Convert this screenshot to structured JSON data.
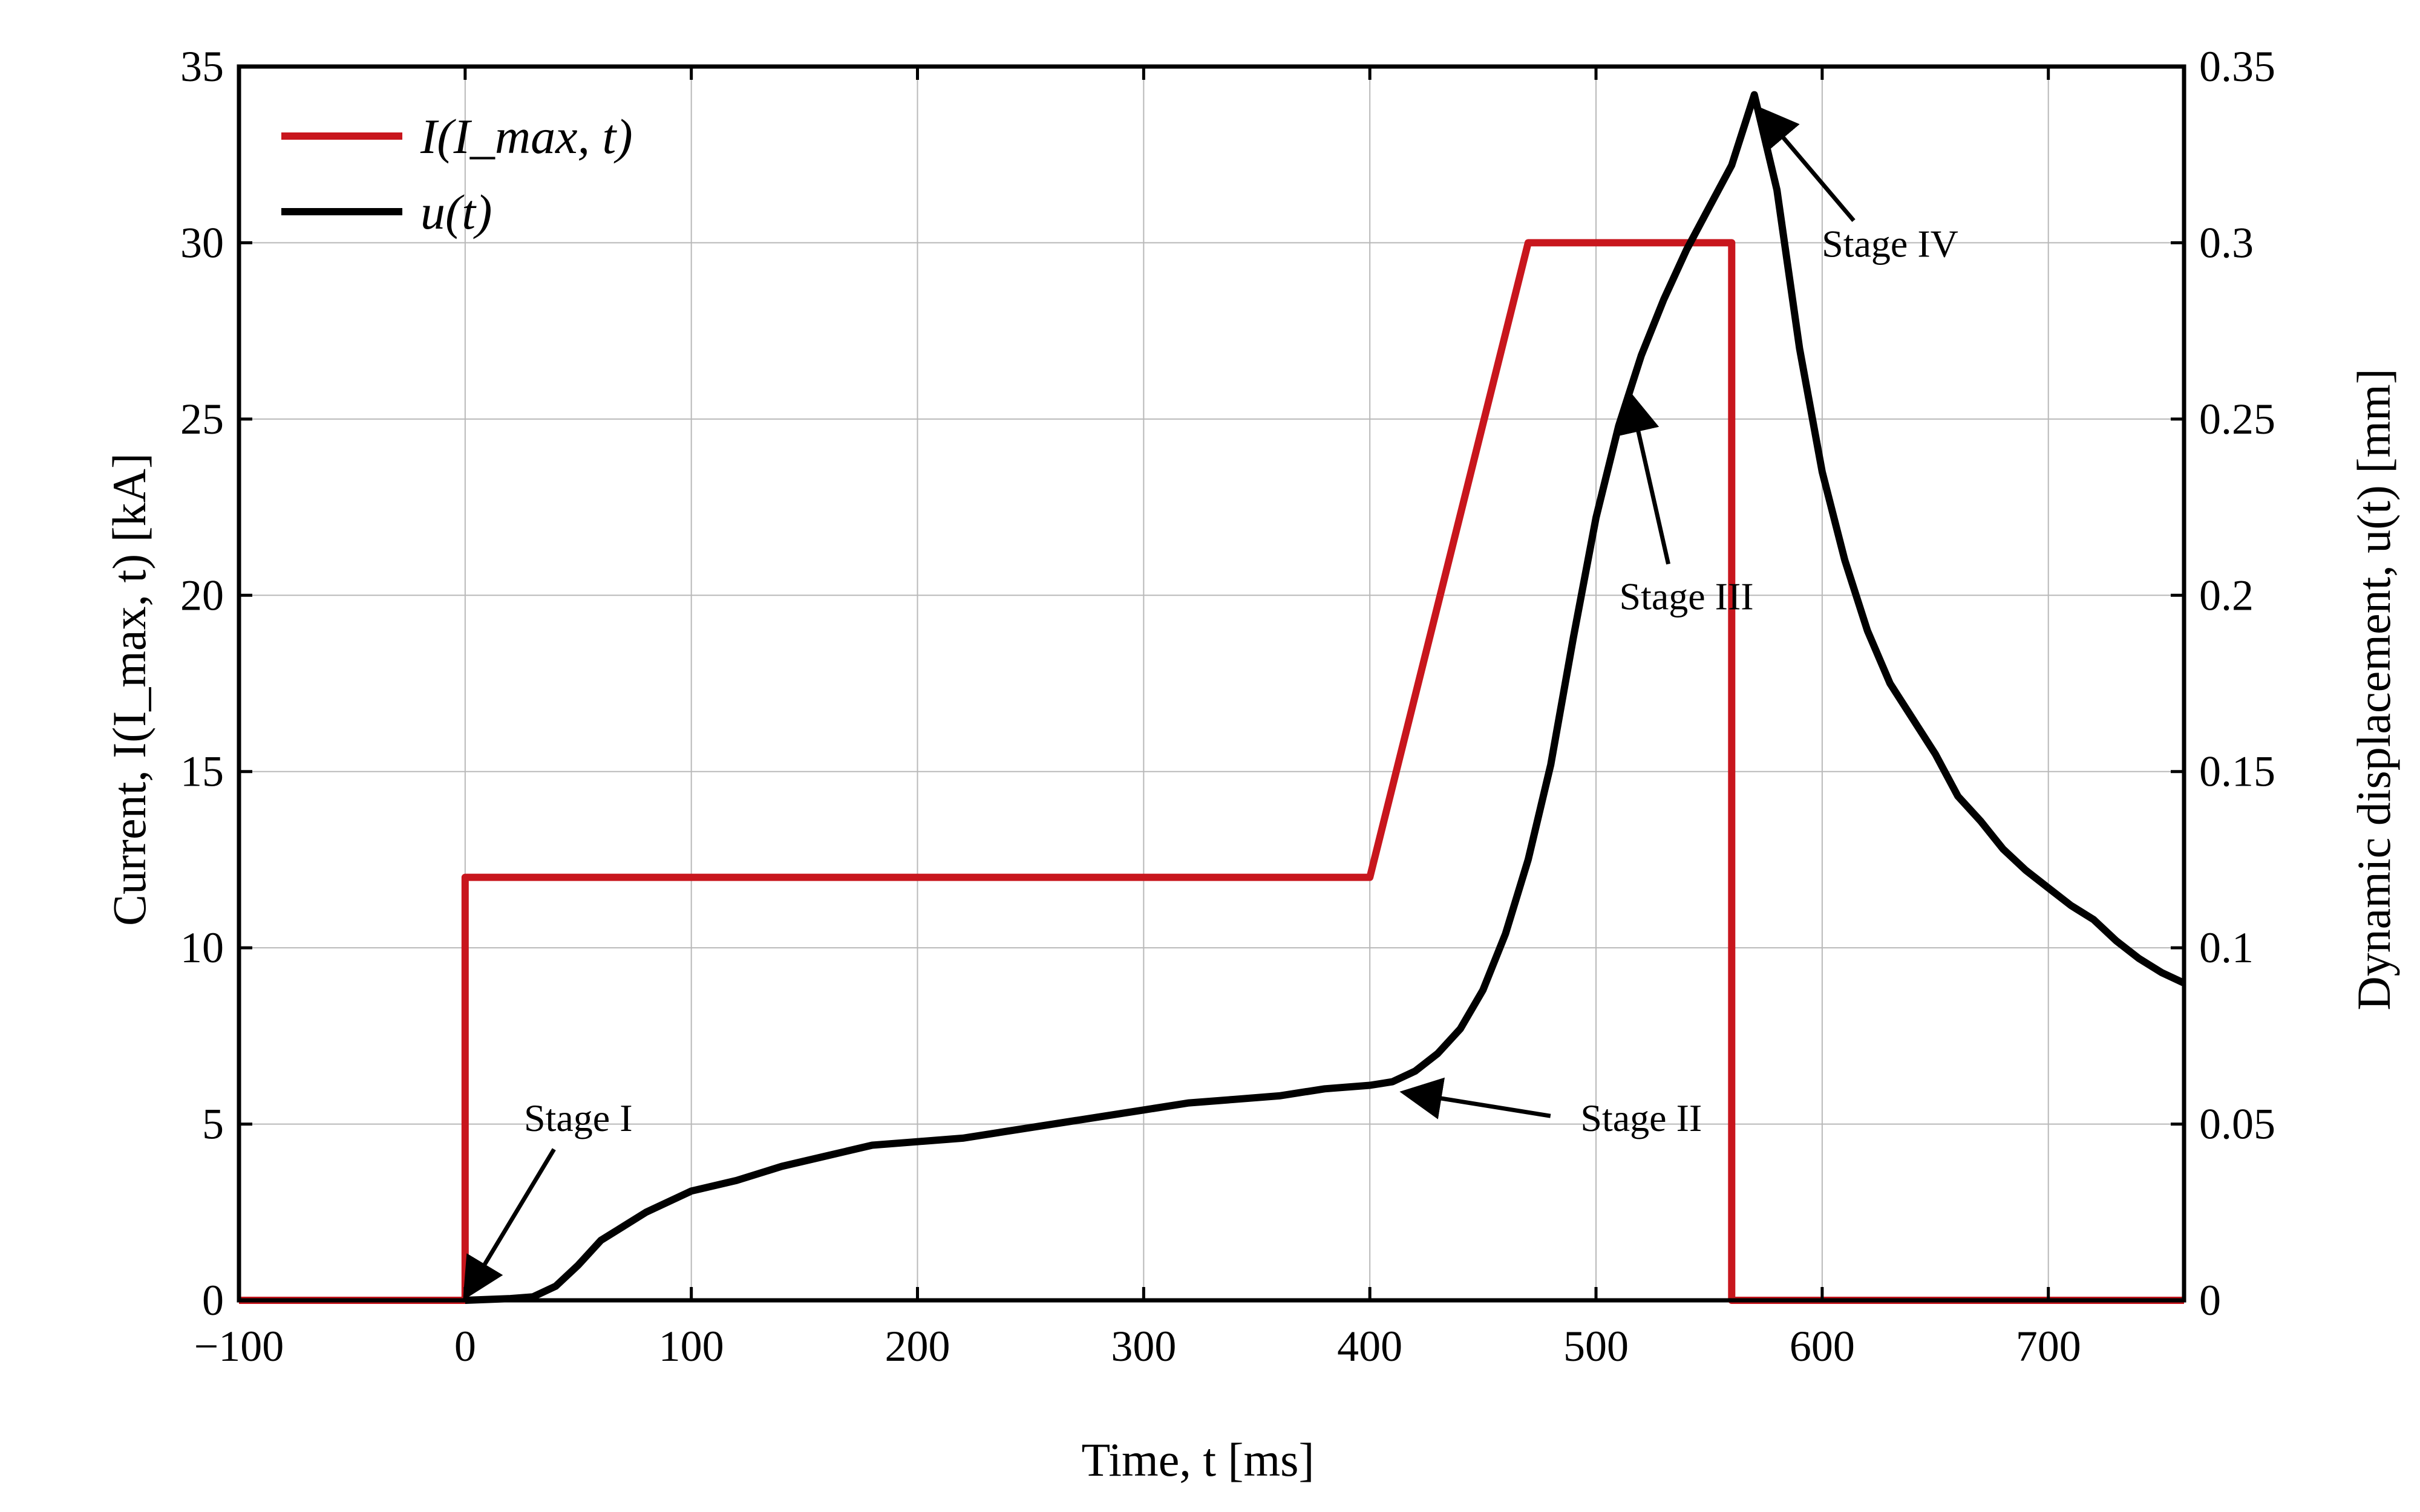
{
  "chart_data": {
    "type": "line",
    "xlabel": "Time, t [ms]",
    "ylabel_left": "Current,  I(I_max, t) [kA]",
    "ylabel_right": "Dynamic displacement,  u(t) [mm]",
    "xlim": [
      -100,
      760
    ],
    "ylim_left": [
      0,
      35
    ],
    "ylim_right": [
      0,
      0.35
    ],
    "grid": true,
    "legend_position": "top-left",
    "x_ticks": [
      {
        "value": -100,
        "label": "−100"
      },
      {
        "value": 0,
        "label": "0"
      },
      {
        "value": 100,
        "label": "100"
      },
      {
        "value": 200,
        "label": "200"
      },
      {
        "value": 300,
        "label": "300"
      },
      {
        "value": 400,
        "label": "400"
      },
      {
        "value": 500,
        "label": "500"
      },
      {
        "value": 600,
        "label": "600"
      },
      {
        "value": 700,
        "label": "700"
      }
    ],
    "y_left_ticks": [
      {
        "value": 0,
        "label": "0"
      },
      {
        "value": 5,
        "label": "5"
      },
      {
        "value": 10,
        "label": "10"
      },
      {
        "value": 15,
        "label": "15"
      },
      {
        "value": 20,
        "label": "20"
      },
      {
        "value": 25,
        "label": "25"
      },
      {
        "value": 30,
        "label": "30"
      },
      {
        "value": 35,
        "label": "35"
      }
    ],
    "y_right_ticks": [
      {
        "value": 0,
        "label": "0"
      },
      {
        "value": 0.05,
        "label": "0.05"
      },
      {
        "value": 0.1,
        "label": "0.1"
      },
      {
        "value": 0.15,
        "label": "0.15"
      },
      {
        "value": 0.2,
        "label": "0.2"
      },
      {
        "value": 0.25,
        "label": "0.25"
      },
      {
        "value": 0.3,
        "label": "0.3"
      },
      {
        "value": 0.35,
        "label": "0.35"
      }
    ],
    "series": [
      {
        "name": "I(I_max, t)",
        "legend_label": "I(I_max, t)",
        "axis": "left",
        "color": "#c8161d",
        "points": [
          [
            -100,
            0
          ],
          [
            0,
            0
          ],
          [
            0,
            12
          ],
          [
            400,
            12
          ],
          [
            470,
            30
          ],
          [
            560,
            30
          ],
          [
            560,
            0
          ],
          [
            760,
            0
          ]
        ]
      },
      {
        "name": "u(t)",
        "legend_label": "u(t)",
        "axis": "right",
        "color": "#000000",
        "points": [
          [
            0,
            0
          ],
          [
            20,
            0.0005
          ],
          [
            30,
            0.001
          ],
          [
            40,
            0.004
          ],
          [
            50,
            0.01
          ],
          [
            60,
            0.017
          ],
          [
            70,
            0.021
          ],
          [
            80,
            0.025
          ],
          [
            90,
            0.028
          ],
          [
            100,
            0.031
          ],
          [
            120,
            0.034
          ],
          [
            140,
            0.038
          ],
          [
            160,
            0.041
          ],
          [
            180,
            0.044
          ],
          [
            200,
            0.045
          ],
          [
            220,
            0.046
          ],
          [
            240,
            0.048
          ],
          [
            260,
            0.05
          ],
          [
            280,
            0.052
          ],
          [
            300,
            0.054
          ],
          [
            320,
            0.056
          ],
          [
            340,
            0.057
          ],
          [
            360,
            0.058
          ],
          [
            380,
            0.06
          ],
          [
            400,
            0.061
          ],
          [
            410,
            0.062
          ],
          [
            420,
            0.065
          ],
          [
            430,
            0.07
          ],
          [
            440,
            0.077
          ],
          [
            450,
            0.088
          ],
          [
            460,
            0.104
          ],
          [
            470,
            0.125
          ],
          [
            480,
            0.152
          ],
          [
            490,
            0.188
          ],
          [
            500,
            0.222
          ],
          [
            510,
            0.248
          ],
          [
            520,
            0.268
          ],
          [
            530,
            0.284
          ],
          [
            540,
            0.298
          ],
          [
            550,
            0.31
          ],
          [
            560,
            0.322
          ],
          [
            570,
            0.342
          ],
          [
            580,
            0.315
          ],
          [
            590,
            0.27
          ],
          [
            600,
            0.235
          ],
          [
            610,
            0.21
          ],
          [
            620,
            0.19
          ],
          [
            630,
            0.175
          ],
          [
            640,
            0.165
          ],
          [
            650,
            0.155
          ],
          [
            660,
            0.143
          ],
          [
            670,
            0.136
          ],
          [
            680,
            0.128
          ],
          [
            690,
            0.122
          ],
          [
            700,
            0.117
          ],
          [
            710,
            0.112
          ],
          [
            720,
            0.108
          ],
          [
            730,
            0.102
          ],
          [
            740,
            0.097
          ],
          [
            750,
            0.093
          ],
          [
            760,
            0.09
          ]
        ]
      }
    ],
    "annotations": [
      {
        "name": "stage-i",
        "text": "Stage I",
        "text_at": [
          50,
          4.8
        ],
        "arrow_to": [
          0,
          0.1
        ]
      },
      {
        "name": "stage-ii",
        "text": "Stage II",
        "text_at": [
          520,
          4.8
        ],
        "arrow_to": [
          415,
          5.9
        ]
      },
      {
        "name": "stage-iii",
        "text": "Stage III",
        "text_at": [
          540,
          19.6
        ],
        "arrow_to": [
          515,
          25.7
        ]
      },
      {
        "name": "stage-iv",
        "text": "Stage IV",
        "text_at": [
          630,
          29.6
        ],
        "arrow_to": [
          572,
          33.8
        ]
      }
    ]
  }
}
